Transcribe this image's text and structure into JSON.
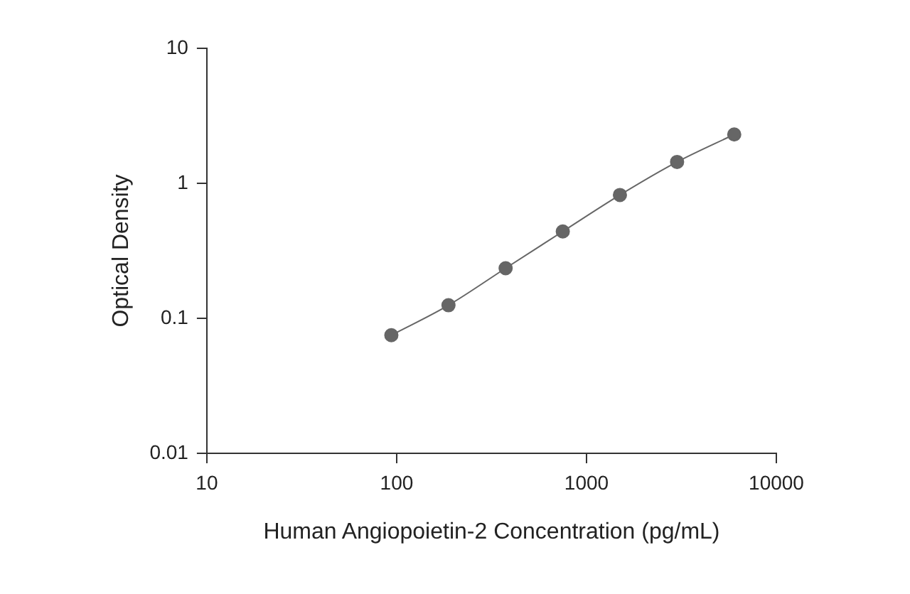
{
  "chart_data": {
    "type": "line",
    "xlabel": "Human Angiopoietin-2 Concentration (pg/mL)",
    "ylabel": "Optical Density",
    "log": "xy",
    "xlim": [
      10,
      10000
    ],
    "xticks": [
      10,
      100,
      1000,
      10000
    ],
    "ylim": [
      0.01,
      10
    ],
    "yticks": [
      0.01,
      0.1,
      1,
      10
    ],
    "grid": false,
    "legend": false,
    "marker": "circle",
    "line_style": "solid",
    "series": [
      {
        "color": "#666666",
        "x": [
          93.75,
          187.5,
          375,
          750,
          1500,
          3000,
          6000
        ],
        "values": [
          0.075,
          0.125,
          0.235,
          0.44,
          0.82,
          1.44,
          2.3
        ]
      }
    ]
  }
}
